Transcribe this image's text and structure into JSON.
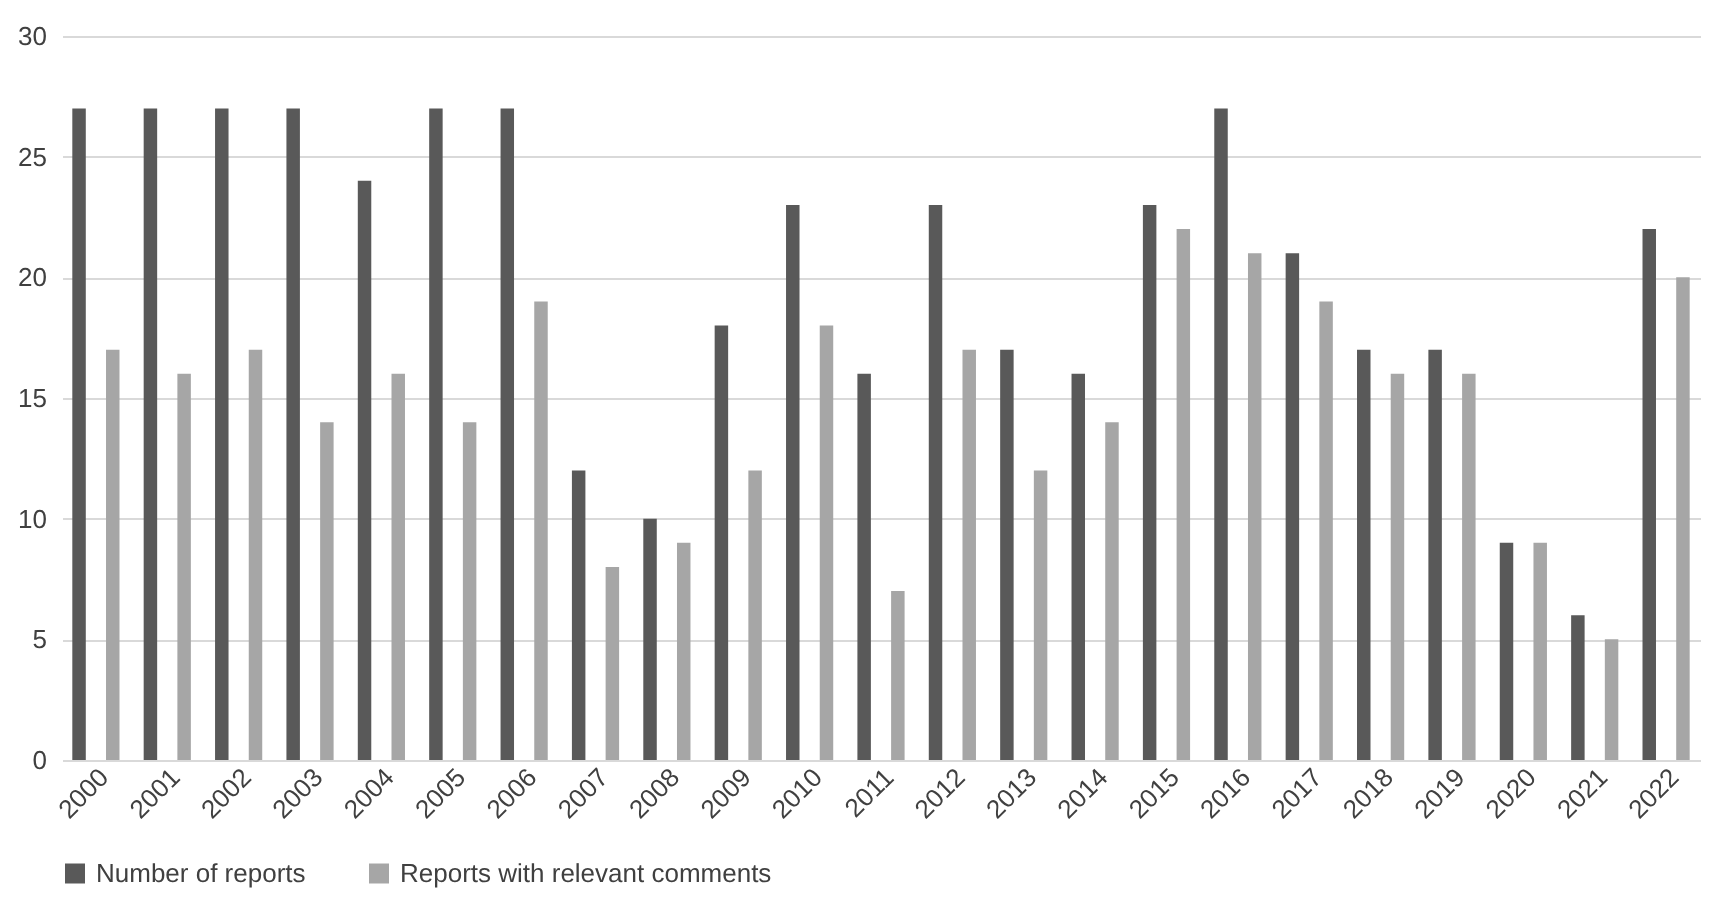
{
  "chart_data": {
    "type": "bar",
    "categories": [
      "2000",
      "2001",
      "2002",
      "2003",
      "2004",
      "2005",
      "2006",
      "2007",
      "2008",
      "2009",
      "2010",
      "2011",
      "2012",
      "2013",
      "2014",
      "2015",
      "2016",
      "2017",
      "2018",
      "2019",
      "2020",
      "2021",
      "2022"
    ],
    "series": [
      {
        "name": "Number of reports",
        "color": "#595959",
        "values": [
          27,
          27,
          27,
          27,
          24,
          27,
          27,
          12,
          10,
          18,
          23,
          16,
          23,
          17,
          16,
          23,
          27,
          21,
          17,
          17,
          9,
          6,
          22
        ]
      },
      {
        "name": "Reports with relevant comments",
        "color": "#a6a6a6",
        "values": [
          17,
          16,
          17,
          14,
          16,
          14,
          19,
          8,
          9,
          12,
          18,
          7,
          17,
          12,
          14,
          22,
          21,
          19,
          16,
          16,
          9,
          5,
          20
        ]
      }
    ],
    "ylim": [
      0,
      30
    ],
    "yticks": [
      0,
      5,
      10,
      15,
      20,
      25,
      30
    ],
    "grid": "y",
    "legend": "bottom"
  }
}
